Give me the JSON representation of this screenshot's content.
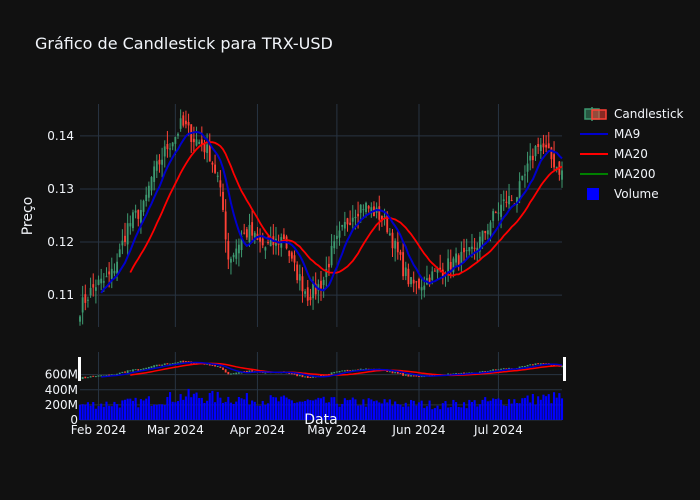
{
  "chart_data": {
    "type": "candlestick",
    "title": "Gráfico de Candlestick para TRX-USD",
    "xlabel": "Data",
    "ylabel": "Preço",
    "x_ticks": [
      "Feb 2024",
      "Mar 2024",
      "Apr 2024",
      "May 2024",
      "Jun 2024",
      "Jul 2024"
    ],
    "y_ticks": [
      "0.11",
      "0.12",
      "0.13",
      "0.14"
    ],
    "ylim": [
      0.104,
      0.146
    ],
    "volume_ticks": [
      "0",
      "200M",
      "400M",
      "600M"
    ],
    "volume_ylim": [
      0,
      900
    ],
    "date_range": [
      "2024-01-25",
      "2024-07-25"
    ],
    "legend_position": "top-right",
    "grid": true,
    "rangeslider": true,
    "series": [
      {
        "name": "Candlestick",
        "kind": "candlestick"
      },
      {
        "name": "MA9",
        "kind": "line"
      },
      {
        "name": "MA20",
        "kind": "line"
      },
      {
        "name": "MA200",
        "kind": "line"
      },
      {
        "name": "Volume",
        "kind": "bar"
      }
    ],
    "close_path": [
      [
        "2024-01-25",
        0.1075
      ],
      [
        "2024-01-28",
        0.11
      ],
      [
        "2024-01-31",
        0.112
      ],
      [
        "2024-02-03",
        0.1125
      ],
      [
        "2024-02-06",
        0.114
      ],
      [
        "2024-02-09",
        0.118
      ],
      [
        "2024-02-12",
        0.123
      ],
      [
        "2024-02-15",
        0.125
      ],
      [
        "2024-02-18",
        0.1265
      ],
      [
        "2024-02-21",
        0.132
      ],
      [
        "2024-02-24",
        0.135
      ],
      [
        "2024-02-27",
        0.138
      ],
      [
        "2024-03-01",
        0.14
      ],
      [
        "2024-03-03",
        0.142
      ],
      [
        "2024-03-05",
        0.1415
      ],
      [
        "2024-03-08",
        0.1395
      ],
      [
        "2024-03-11",
        0.1385
      ],
      [
        "2024-03-14",
        0.1365
      ],
      [
        "2024-03-17",
        0.132
      ],
      [
        "2024-03-19",
        0.126
      ],
      [
        "2024-03-21",
        0.117
      ],
      [
        "2024-03-23",
        0.118
      ],
      [
        "2024-03-26",
        0.121
      ],
      [
        "2024-03-29",
        0.122
      ],
      [
        "2024-04-01",
        0.12
      ],
      [
        "2024-04-04",
        0.119
      ],
      [
        "2024-04-08",
        0.12
      ],
      [
        "2024-04-11",
        0.121
      ],
      [
        "2024-04-14",
        0.116
      ],
      [
        "2024-04-17",
        0.113
      ],
      [
        "2024-04-20",
        0.11
      ],
      [
        "2024-04-23",
        0.111
      ],
      [
        "2024-04-26",
        0.113
      ],
      [
        "2024-04-29",
        0.118
      ],
      [
        "2024-05-02",
        0.121
      ],
      [
        "2024-05-05",
        0.124
      ],
      [
        "2024-05-08",
        0.126
      ],
      [
        "2024-05-11",
        0.127
      ],
      [
        "2024-05-14",
        0.126
      ],
      [
        "2024-05-17",
        0.125
      ],
      [
        "2024-05-20",
        0.123
      ],
      [
        "2024-05-23",
        0.119
      ],
      [
        "2024-05-26",
        0.115
      ],
      [
        "2024-05-29",
        0.112
      ],
      [
        "2024-06-01",
        0.112
      ],
      [
        "2024-06-04",
        0.113
      ],
      [
        "2024-06-07",
        0.114
      ],
      [
        "2024-06-10",
        0.115
      ],
      [
        "2024-06-13",
        0.116
      ],
      [
        "2024-06-16",
        0.117
      ],
      [
        "2024-06-19",
        0.117
      ],
      [
        "2024-06-22",
        0.119
      ],
      [
        "2024-06-25",
        0.121
      ],
      [
        "2024-06-28",
        0.124
      ],
      [
        "2024-07-01",
        0.126
      ],
      [
        "2024-07-04",
        0.128
      ],
      [
        "2024-07-07",
        0.128
      ],
      [
        "2024-07-10",
        0.131
      ],
      [
        "2024-07-13",
        0.135
      ],
      [
        "2024-07-16",
        0.139
      ],
      [
        "2024-07-19",
        0.137
      ],
      [
        "2024-07-22",
        0.135
      ],
      [
        "2024-07-25",
        0.133
      ]
    ],
    "volume_levels": [
      [
        "2024-01-25",
        200
      ],
      [
        "2024-02-15",
        230
      ],
      [
        "2024-03-05",
        320
      ],
      [
        "2024-03-25",
        280
      ],
      [
        "2024-04-20",
        240
      ],
      [
        "2024-05-15",
        230
      ],
      [
        "2024-06-10",
        200
      ],
      [
        "2024-07-01",
        250
      ],
      [
        "2024-07-25",
        300
      ]
    ]
  },
  "colors": {
    "background": "#111111",
    "grid": "#283442",
    "text": "#f2f5fa",
    "increasing": "#3d9970",
    "decreasing": "#ff4136",
    "ma9": "#0000cc",
    "ma20": "#ff0000",
    "ma200": "#008000",
    "volume": "#0000ff"
  }
}
